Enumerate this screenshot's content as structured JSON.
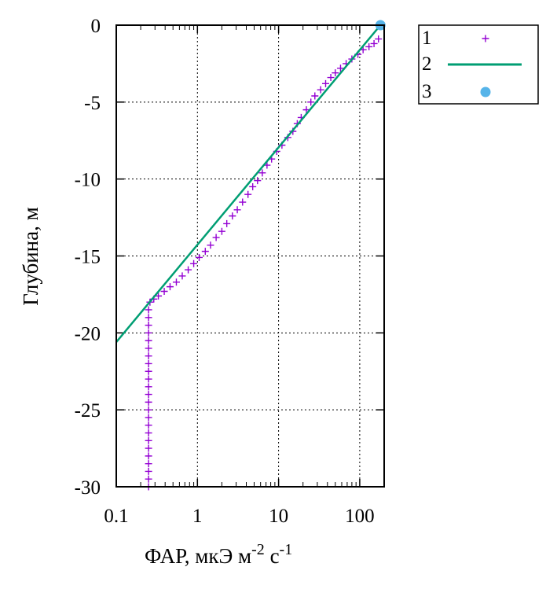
{
  "chart_data": {
    "type": "scatter",
    "x_scale": "log",
    "xlim": [
      0.1,
      200
    ],
    "ylim": [
      -30,
      0
    ],
    "grid": true,
    "legend_position": "outside-top-right",
    "x_ticks": [
      {
        "value": 0.1,
        "label": "0.1"
      },
      {
        "value": 1,
        "label": "1"
      },
      {
        "value": 10,
        "label": "10"
      },
      {
        "value": 100,
        "label": "100"
      }
    ],
    "y_ticks": [
      {
        "value": 0,
        "label": "0"
      },
      {
        "value": -5,
        "label": "-5"
      },
      {
        "value": -10,
        "label": "-10"
      },
      {
        "value": -15,
        "label": "-15"
      },
      {
        "value": -20,
        "label": "-20"
      },
      {
        "value": -25,
        "label": "-25"
      },
      {
        "value": -30,
        "label": "-30"
      }
    ],
    "xlabel": {
      "main": "ФАР, мкЭ м",
      "sup1": "-2",
      "mid": " с",
      "sup2": "-1"
    },
    "ylabel": "Глубина, м",
    "series": [
      {
        "name": "1",
        "kind": "points",
        "marker": "plus",
        "color": "#9400d3",
        "points": [
          [
            170,
            -0.9
          ],
          [
            150,
            -1.2
          ],
          [
            130,
            -1.4
          ],
          [
            110,
            -1.6
          ],
          [
            95,
            -1.9
          ],
          [
            80,
            -2.2
          ],
          [
            68,
            -2.5
          ],
          [
            58,
            -2.8
          ],
          [
            50,
            -3.1
          ],
          [
            44,
            -3.4
          ],
          [
            38,
            -3.8
          ],
          [
            33,
            -4.2
          ],
          [
            28,
            -4.6
          ],
          [
            25,
            -5.0
          ],
          [
            22,
            -5.5
          ],
          [
            19,
            -6.0
          ],
          [
            17,
            -6.4
          ],
          [
            15,
            -6.9
          ],
          [
            13,
            -7.3
          ],
          [
            11,
            -7.8
          ],
          [
            9.5,
            -8.2
          ],
          [
            8.2,
            -8.7
          ],
          [
            7.2,
            -9.1
          ],
          [
            6.3,
            -9.6
          ],
          [
            5.5,
            -10.1
          ],
          [
            4.8,
            -10.5
          ],
          [
            4.2,
            -11.0
          ],
          [
            3.6,
            -11.5
          ],
          [
            3.1,
            -12.0
          ],
          [
            2.7,
            -12.4
          ],
          [
            2.3,
            -12.9
          ],
          [
            2.0,
            -13.4
          ],
          [
            1.7,
            -13.8
          ],
          [
            1.45,
            -14.3
          ],
          [
            1.25,
            -14.7
          ],
          [
            1.05,
            -15.1
          ],
          [
            0.9,
            -15.5
          ],
          [
            0.77,
            -15.9
          ],
          [
            0.65,
            -16.3
          ],
          [
            0.55,
            -16.7
          ],
          [
            0.46,
            -17.0
          ],
          [
            0.39,
            -17.3
          ],
          [
            0.33,
            -17.6
          ],
          [
            0.29,
            -17.8
          ],
          [
            0.26,
            -18.0
          ],
          [
            0.25,
            -18.5
          ],
          [
            0.25,
            -19.0
          ],
          [
            0.25,
            -19.5
          ],
          [
            0.25,
            -20.0
          ],
          [
            0.25,
            -20.5
          ],
          [
            0.25,
            -21.0
          ],
          [
            0.25,
            -21.5
          ],
          [
            0.25,
            -22.0
          ],
          [
            0.25,
            -22.5
          ],
          [
            0.25,
            -23.0
          ],
          [
            0.25,
            -23.5
          ],
          [
            0.25,
            -24.0
          ],
          [
            0.25,
            -24.5
          ],
          [
            0.25,
            -25.0
          ],
          [
            0.25,
            -25.5
          ],
          [
            0.25,
            -26.0
          ],
          [
            0.25,
            -26.5
          ],
          [
            0.25,
            -27.0
          ],
          [
            0.25,
            -27.5
          ],
          [
            0.25,
            -28.0
          ],
          [
            0.25,
            -28.5
          ],
          [
            0.25,
            -29.0
          ],
          [
            0.25,
            -29.5
          ],
          [
            0.25,
            -30.0
          ]
        ]
      },
      {
        "name": "2",
        "kind": "line",
        "color": "#009e73",
        "points": [
          [
            0.1,
            -20.6
          ],
          [
            180,
            0
          ]
        ]
      },
      {
        "name": "3",
        "kind": "marker",
        "marker": "circle",
        "color": "#56b4e9",
        "points": [
          [
            180,
            0
          ]
        ]
      }
    ]
  }
}
